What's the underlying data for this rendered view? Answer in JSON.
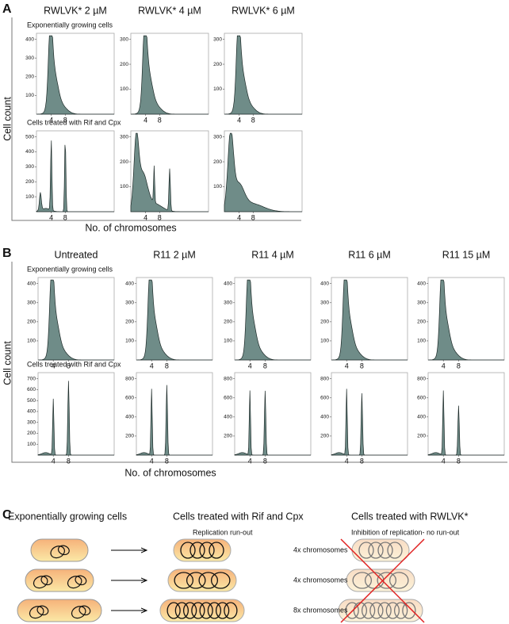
{
  "panel_a": {
    "label": "A",
    "columns": [
      "RWLVK* 2 µM",
      "RWLVK* 4 µM",
      "RWLVK* 6 µM"
    ],
    "rows": [
      "Exponentially growing cells",
      "Cells treated with Rif and Cpx"
    ],
    "y_axis": "Cell count",
    "x_axis": "No. of chromosomes",
    "plots": [
      [
        {
          "yticks": [
            "400",
            "300",
            "200",
            "100"
          ],
          "xticks": [
            "4",
            "8"
          ]
        },
        {
          "yticks": [
            "300",
            "200",
            "100"
          ],
          "xticks": [
            "4",
            "8"
          ]
        },
        {
          "yticks": [
            "300",
            "200",
            "100"
          ],
          "xticks": [
            "4",
            "8"
          ]
        }
      ],
      [
        {
          "yticks": [
            "500",
            "400",
            "300",
            "200",
            "100"
          ],
          "xticks": [
            "4",
            "8"
          ]
        },
        {
          "yticks": [
            "300",
            "200",
            "100"
          ],
          "xticks": [
            "4",
            "8"
          ]
        },
        {
          "yticks": [
            "300",
            "200",
            "100"
          ],
          "xticks": [
            "4",
            "8"
          ]
        }
      ]
    ]
  },
  "panel_b": {
    "label": "B",
    "columns": [
      "Untreated",
      "R11 2 µM",
      "R11 4 µM",
      "R11 6 µM",
      "R11 15 µM"
    ],
    "rows": [
      "Exponentially growing cells",
      "Cells treated with Rif and Cpx"
    ],
    "y_axis": "Cell count",
    "x_axis": "No. of chromosomes",
    "plots": [
      [
        {
          "yticks": [
            "400",
            "300",
            "200",
            "100"
          ],
          "xticks": [
            "4",
            "8"
          ]
        },
        {
          "yticks": [
            "400",
            "300",
            "200",
            "100"
          ],
          "xticks": [
            "4",
            "8"
          ]
        },
        {
          "yticks": [
            "400",
            "300",
            "200",
            "100"
          ],
          "xticks": [
            "4",
            "8"
          ]
        },
        {
          "yticks": [
            "400",
            "300",
            "200",
            "100"
          ],
          "xticks": [
            "4",
            "8"
          ]
        },
        {
          "yticks": [
            "400",
            "300",
            "200",
            "100"
          ],
          "xticks": [
            "4",
            "8"
          ]
        }
      ],
      [
        {
          "yticks": [
            "700",
            "600",
            "500",
            "400",
            "300",
            "200",
            "100"
          ],
          "xticks": [
            "4",
            "8"
          ]
        },
        {
          "yticks": [
            "800",
            "600",
            "400",
            "200"
          ],
          "xticks": [
            "4",
            "8"
          ]
        },
        {
          "yticks": [
            "800",
            "600",
            "400",
            "200"
          ],
          "xticks": [
            "4",
            "8"
          ]
        },
        {
          "yticks": [
            "800",
            "600",
            "400",
            "200"
          ],
          "xticks": [
            "4",
            "8"
          ]
        },
        {
          "yticks": [
            "800",
            "600",
            "400",
            "200"
          ],
          "xticks": [
            "4",
            "8"
          ]
        }
      ]
    ]
  },
  "panel_c": {
    "label": "C",
    "headers": [
      "Exponentially growing cells",
      "Cells treated with Rif and Cpx",
      "Cells treated with RWLVK*"
    ],
    "subheaders": [
      "Replication run-out",
      "Inhibition of replication- no run-out"
    ],
    "row_labels": [
      "4x chromosomes",
      "4x chromosomes",
      "8x chromosomes"
    ]
  }
}
